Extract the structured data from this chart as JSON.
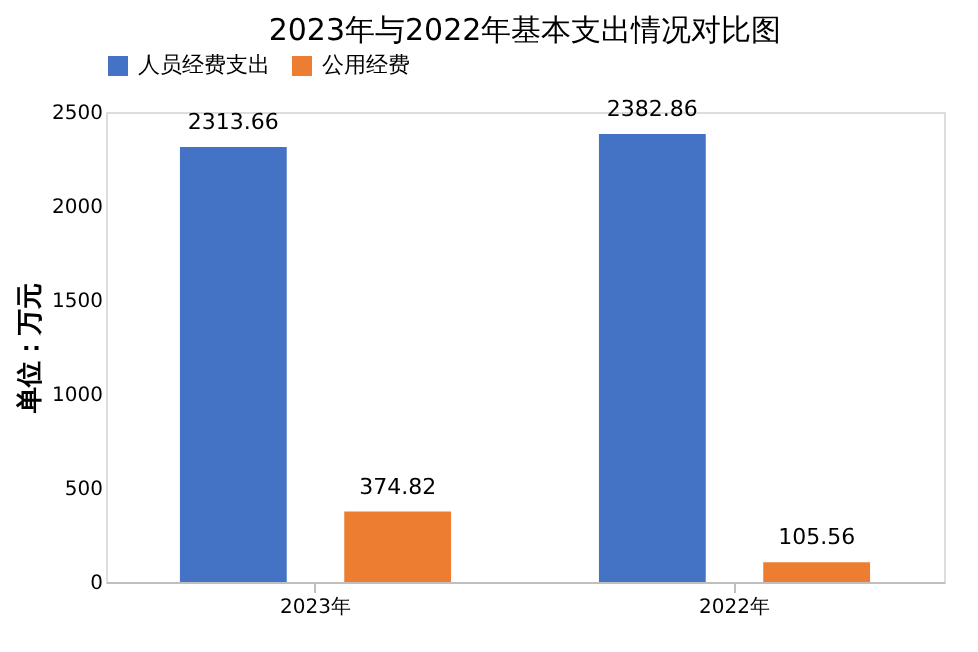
{
  "chart_data": {
    "type": "bar",
    "title": "2023年与2022年基本支出情况对比图",
    "ylabel": "单位：万元",
    "categories": [
      "2023年",
      "2022年"
    ],
    "series": [
      {
        "name": "人员经费支出",
        "color": "#4472c4",
        "values": [
          2313.66,
          2382.86
        ]
      },
      {
        "name": "公用经费",
        "color": "#ed7d31",
        "values": [
          374.82,
          105.56
        ]
      }
    ],
    "ylim": [
      0,
      2500
    ],
    "yticks": [
      0,
      500,
      1000,
      1500,
      2000,
      2500
    ],
    "grid": false,
    "legend": "top",
    "data_labels": true
  }
}
